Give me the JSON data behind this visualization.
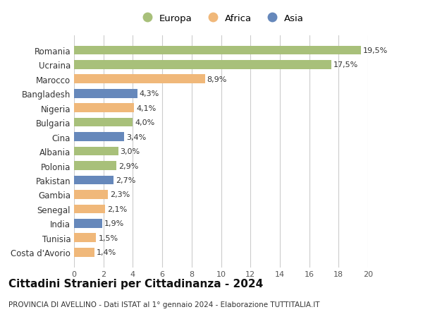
{
  "categories": [
    "Costa d'Avorio",
    "Tunisia",
    "India",
    "Senegal",
    "Gambia",
    "Pakistan",
    "Polonia",
    "Albania",
    "Cina",
    "Bulgaria",
    "Nigeria",
    "Bangladesh",
    "Marocco",
    "Ucraina",
    "Romania"
  ],
  "values": [
    1.4,
    1.5,
    1.9,
    2.1,
    2.3,
    2.7,
    2.9,
    3.0,
    3.4,
    4.0,
    4.1,
    4.3,
    8.9,
    17.5,
    19.5
  ],
  "labels": [
    "1,4%",
    "1,5%",
    "1,9%",
    "2,1%",
    "2,3%",
    "2,7%",
    "2,9%",
    "3,0%",
    "3,4%",
    "4,0%",
    "4,1%",
    "4,3%",
    "8,9%",
    "17,5%",
    "19,5%"
  ],
  "continents": [
    "Africa",
    "Africa",
    "Asia",
    "Africa",
    "Africa",
    "Asia",
    "Europa",
    "Europa",
    "Asia",
    "Europa",
    "Africa",
    "Asia",
    "Africa",
    "Europa",
    "Europa"
  ],
  "colors": {
    "Europa": "#a8c07a",
    "Africa": "#f0b87a",
    "Asia": "#6688bb"
  },
  "title": "Cittadini Stranieri per Cittadinanza - 2024",
  "subtitle": "PROVINCIA DI AVELLINO - Dati ISTAT al 1° gennaio 2024 - Elaborazione TUTTITALIA.IT",
  "xlim": [
    0,
    20
  ],
  "xticks": [
    0,
    2,
    4,
    6,
    8,
    10,
    12,
    14,
    16,
    18,
    20
  ],
  "bar_height": 0.62,
  "grid_color": "#cccccc",
  "bg_color": "#ffffff",
  "label_fontsize": 8.0,
  "tick_fontsize": 8.0,
  "ytick_fontsize": 8.5,
  "title_fontsize": 11,
  "subtitle_fontsize": 7.5,
  "legend_fontsize": 9.5
}
